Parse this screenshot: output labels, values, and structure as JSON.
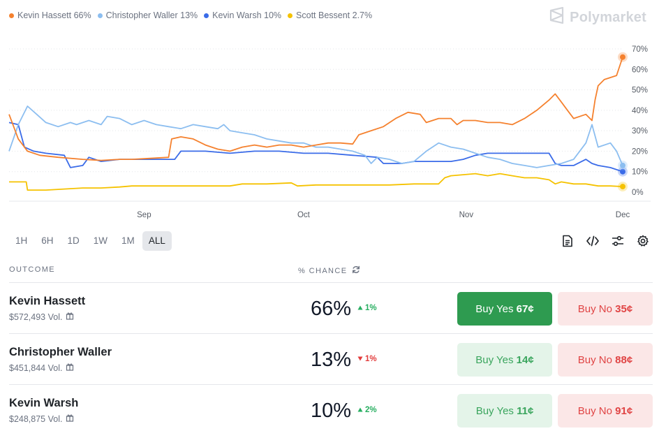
{
  "legend": [
    {
      "label": "Kevin Hassett 66%",
      "color": "#f5812e"
    },
    {
      "label": "Christopher Waller 13%",
      "color": "#8cbef0"
    },
    {
      "label": "Kevin Warsh 10%",
      "color": "#3a6be8"
    },
    {
      "label": "Scott Bessent 2.7%",
      "color": "#f5c200"
    }
  ],
  "brand": {
    "name": "Polymarket",
    "icon": "polymarket-logo-icon"
  },
  "chart_data": {
    "type": "line",
    "y_ticks": [
      "70%",
      "60%",
      "50%",
      "40%",
      "30%",
      "20%",
      "10%",
      "0%"
    ],
    "ylim": [
      0,
      70
    ],
    "x_ticks": [
      "Sep",
      "Oct",
      "Nov",
      "Dec"
    ],
    "x_range": [
      0,
      100
    ],
    "x_tick_positions": [
      22,
      48,
      74.5,
      100
    ],
    "series": [
      {
        "name": "Kevin Hassett",
        "color": "#f5812e",
        "points": [
          [
            0,
            38
          ],
          [
            1.5,
            26
          ],
          [
            3,
            20
          ],
          [
            5,
            18
          ],
          [
            8,
            17
          ],
          [
            12,
            16
          ],
          [
            15,
            15.5
          ],
          [
            18,
            16
          ],
          [
            20,
            16
          ],
          [
            23,
            16.5
          ],
          [
            26,
            17
          ],
          [
            26.5,
            26
          ],
          [
            28,
            27
          ],
          [
            30,
            26
          ],
          [
            32,
            23
          ],
          [
            34,
            21
          ],
          [
            36,
            20
          ],
          [
            38,
            22
          ],
          [
            40,
            23
          ],
          [
            42,
            22
          ],
          [
            44,
            23
          ],
          [
            46,
            23
          ],
          [
            48,
            22
          ],
          [
            50,
            23
          ],
          [
            52,
            24
          ],
          [
            54,
            24
          ],
          [
            56,
            23.5
          ],
          [
            57,
            28
          ],
          [
            59,
            30
          ],
          [
            61,
            32
          ],
          [
            63,
            36
          ],
          [
            65,
            39
          ],
          [
            67,
            38
          ],
          [
            68,
            34
          ],
          [
            70,
            36
          ],
          [
            72,
            36
          ],
          [
            73,
            33
          ],
          [
            74,
            35
          ],
          [
            76,
            35
          ],
          [
            78,
            34
          ],
          [
            80,
            34
          ],
          [
            82,
            33
          ],
          [
            84,
            36
          ],
          [
            86,
            40
          ],
          [
            88,
            45
          ],
          [
            89,
            48
          ],
          [
            90,
            44
          ],
          [
            91,
            40
          ],
          [
            92,
            36
          ],
          [
            94,
            38
          ],
          [
            95,
            35
          ],
          [
            95.5,
            45
          ],
          [
            96,
            52
          ],
          [
            97,
            55
          ],
          [
            98,
            56
          ],
          [
            99,
            57
          ],
          [
            100,
            66
          ]
        ]
      },
      {
        "name": "Christopher Waller",
        "color": "#8cbef0",
        "points": [
          [
            0,
            20
          ],
          [
            1.5,
            33
          ],
          [
            3,
            42
          ],
          [
            4.5,
            38
          ],
          [
            6,
            34
          ],
          [
            8,
            32
          ],
          [
            10,
            34
          ],
          [
            11,
            33
          ],
          [
            13,
            35
          ],
          [
            15,
            33
          ],
          [
            16,
            37
          ],
          [
            18,
            36
          ],
          [
            20,
            33
          ],
          [
            22,
            35
          ],
          [
            24,
            33
          ],
          [
            26,
            32
          ],
          [
            28,
            31
          ],
          [
            30,
            33
          ],
          [
            32,
            32
          ],
          [
            34,
            31
          ],
          [
            35,
            33
          ],
          [
            36,
            30
          ],
          [
            38,
            29
          ],
          [
            40,
            28
          ],
          [
            42,
            26
          ],
          [
            44,
            25
          ],
          [
            46,
            24
          ],
          [
            48,
            24
          ],
          [
            50,
            22
          ],
          [
            52,
            22
          ],
          [
            54,
            21
          ],
          [
            56,
            20
          ],
          [
            58,
            18
          ],
          [
            59,
            14
          ],
          [
            60,
            17
          ],
          [
            62,
            16
          ],
          [
            64,
            14
          ],
          [
            66,
            15
          ],
          [
            68,
            20
          ],
          [
            70,
            24
          ],
          [
            72,
            22
          ],
          [
            74,
            21
          ],
          [
            76,
            19
          ],
          [
            78,
            17
          ],
          [
            80,
            16
          ],
          [
            82,
            14
          ],
          [
            84,
            13
          ],
          [
            86,
            12
          ],
          [
            88,
            13
          ],
          [
            90,
            14
          ],
          [
            92,
            16
          ],
          [
            94,
            24
          ],
          [
            95,
            33
          ],
          [
            96,
            22
          ],
          [
            98,
            24
          ],
          [
            99,
            20
          ],
          [
            100,
            13
          ]
        ]
      },
      {
        "name": "Kevin Warsh",
        "color": "#3a6be8",
        "points": [
          [
            0,
            34
          ],
          [
            1.5,
            33
          ],
          [
            2.5,
            22
          ],
          [
            4,
            20
          ],
          [
            6,
            19
          ],
          [
            9,
            18
          ],
          [
            10,
            12
          ],
          [
            12,
            13
          ],
          [
            13,
            17
          ],
          [
            15,
            15
          ],
          [
            18,
            16
          ],
          [
            21,
            16
          ],
          [
            24,
            16
          ],
          [
            27,
            16
          ],
          [
            28,
            20
          ],
          [
            32,
            20
          ],
          [
            36,
            19
          ],
          [
            40,
            20
          ],
          [
            44,
            20
          ],
          [
            48,
            19
          ],
          [
            52,
            19
          ],
          [
            56,
            18
          ],
          [
            60,
            17
          ],
          [
            61,
            14
          ],
          [
            64,
            14
          ],
          [
            66,
            15
          ],
          [
            68,
            15
          ],
          [
            70,
            15
          ],
          [
            72,
            15
          ],
          [
            74,
            16
          ],
          [
            76,
            18
          ],
          [
            78,
            19
          ],
          [
            80,
            19
          ],
          [
            82,
            19
          ],
          [
            84,
            19
          ],
          [
            86,
            19
          ],
          [
            88,
            19
          ],
          [
            89,
            14
          ],
          [
            90,
            13
          ],
          [
            92,
            13
          ],
          [
            94,
            16
          ],
          [
            95,
            14
          ],
          [
            96,
            13
          ],
          [
            98,
            12
          ],
          [
            100,
            10
          ]
        ]
      },
      {
        "name": "Scott Bessent",
        "color": "#f5c200",
        "points": [
          [
            0,
            5
          ],
          [
            2.8,
            5
          ],
          [
            3,
            1
          ],
          [
            6,
            1
          ],
          [
            9,
            1.5
          ],
          [
            12,
            2
          ],
          [
            15,
            2
          ],
          [
            18,
            2.5
          ],
          [
            20,
            3
          ],
          [
            24,
            3
          ],
          [
            28,
            3
          ],
          [
            32,
            3
          ],
          [
            36,
            3
          ],
          [
            38,
            4
          ],
          [
            42,
            4
          ],
          [
            46,
            4.5
          ],
          [
            47,
            3
          ],
          [
            50,
            3.5
          ],
          [
            54,
            3.5
          ],
          [
            58,
            3.5
          ],
          [
            62,
            3.5
          ],
          [
            66,
            4
          ],
          [
            70,
            4
          ],
          [
            71,
            7
          ],
          [
            72,
            8
          ],
          [
            74,
            8.5
          ],
          [
            76,
            9
          ],
          [
            78,
            8
          ],
          [
            80,
            9
          ],
          [
            82,
            8
          ],
          [
            84,
            7
          ],
          [
            86,
            7
          ],
          [
            88,
            6
          ],
          [
            89,
            4
          ],
          [
            90,
            5
          ],
          [
            92,
            4
          ],
          [
            94,
            4
          ],
          [
            96,
            3
          ],
          [
            98,
            3
          ],
          [
            100,
            2.7
          ]
        ]
      }
    ]
  },
  "ranges": [
    {
      "label": "1H",
      "active": false
    },
    {
      "label": "6H",
      "active": false
    },
    {
      "label": "1D",
      "active": false
    },
    {
      "label": "1W",
      "active": false
    },
    {
      "label": "1M",
      "active": false
    },
    {
      "label": "ALL",
      "active": true
    }
  ],
  "tools": [
    "document-icon",
    "code-icon",
    "sliders-icon",
    "gear-icon"
  ],
  "table": {
    "col_outcome": "OUTCOME",
    "col_chance": "% CHANCE",
    "rows": [
      {
        "name": "Kevin Hassett",
        "volume": "$572,493 Vol.",
        "chance": "66%",
        "delta": "1%",
        "direction": "up",
        "yes_label": "Buy Yes ",
        "yes_price": "67¢",
        "no_label": "Buy No ",
        "no_price": "35¢",
        "primary": true
      },
      {
        "name": "Christopher Waller",
        "volume": "$451,844 Vol.",
        "chance": "13%",
        "delta": "1%",
        "direction": "down",
        "yes_label": "Buy Yes ",
        "yes_price": "14¢",
        "no_label": "Buy No ",
        "no_price": "88¢",
        "primary": false
      },
      {
        "name": "Kevin Warsh",
        "volume": "$248,875 Vol.",
        "chance": "10%",
        "delta": "2%",
        "direction": "up",
        "yes_label": "Buy Yes ",
        "yes_price": "11¢",
        "no_label": "Buy No ",
        "no_price": "91¢",
        "primary": false
      }
    ]
  }
}
